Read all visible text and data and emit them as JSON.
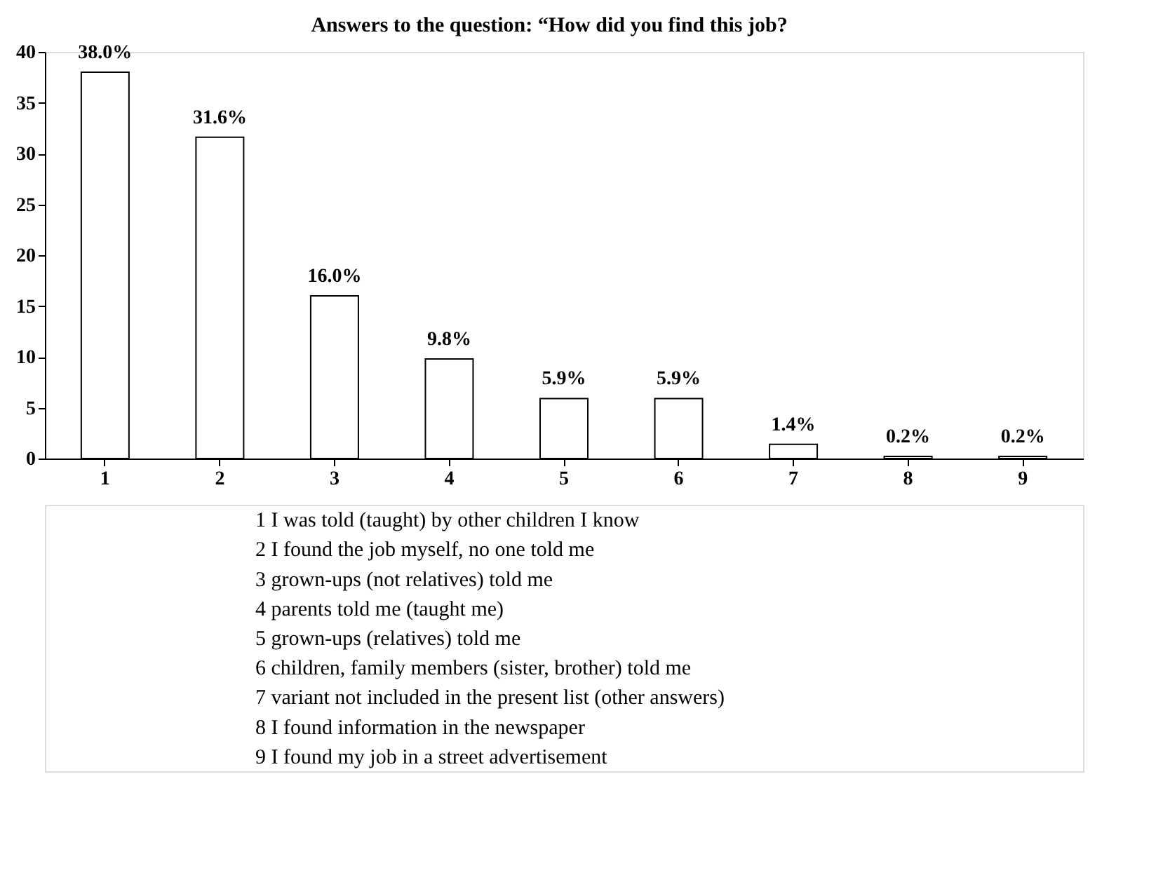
{
  "chart_data": {
    "type": "bar",
    "title": "Answers to the question: “How did you find this job?",
    "categories": [
      "1",
      "2",
      "3",
      "4",
      "5",
      "6",
      "7",
      "8",
      "9"
    ],
    "values": [
      38.0,
      31.6,
      16.0,
      9.8,
      5.9,
      5.9,
      1.4,
      0.2,
      0.2
    ],
    "value_labels": [
      "38.0%",
      "31.6%",
      "16.0%",
      "9.8%",
      "5.9%",
      "5.9%",
      "1.4%",
      "0.2%",
      "0.2%"
    ],
    "color": "#ffffff",
    "ylim": [
      0,
      40
    ],
    "yticks": [
      0,
      5,
      10,
      15,
      20,
      25,
      30,
      35,
      40
    ],
    "grid": false,
    "annotations": [
      "1   I was told (taught) by other children I know",
      "2   I found the job myself, no one told me",
      "3   grown-ups (not relatives) told me",
      "4   parents told me (taught me)",
      "5   grown-ups (relatives) told me",
      "6   children, family members (sister, brother) told me",
      "7   variant not included in the present list (other answers)",
      "8   I found information in the newspaper",
      "9   I found my job in a street advertisement"
    ]
  }
}
